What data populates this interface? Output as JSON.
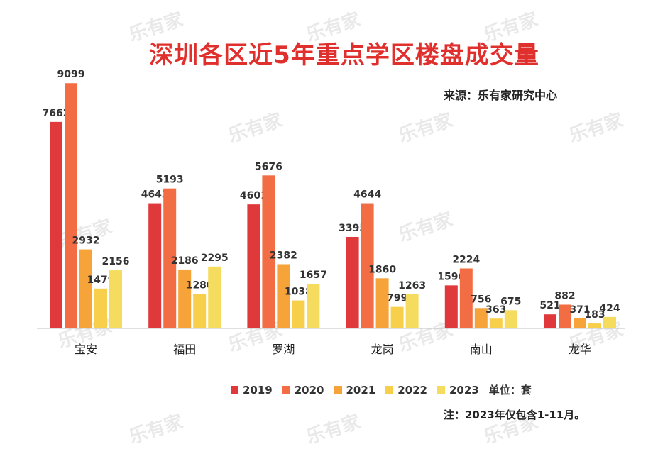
{
  "chart_data": {
    "type": "bar",
    "title": "深圳各区近5年重点学区楼盘成交量",
    "source": "来源：乐有家研究中心",
    "unit_label": "单位：套",
    "footnote": "注：2023年仅包含1-11月。",
    "categories": [
      "宝安",
      "福田",
      "罗湖",
      "龙岗",
      "南山",
      "龙华"
    ],
    "series": [
      {
        "name": "2019",
        "color": "#e0393b",
        "values": [
          7662,
          4643,
          4601,
          3395,
          1596,
          521
        ]
      },
      {
        "name": "2020",
        "color": "#f36d44",
        "values": [
          9099,
          5193,
          5676,
          4644,
          2224,
          882
        ]
      },
      {
        "name": "2021",
        "color": "#f6a33a",
        "values": [
          2932,
          2186,
          2382,
          1860,
          756,
          371
        ]
      },
      {
        "name": "2022",
        "color": "#f8cf4a",
        "values": [
          1479,
          1280,
          1038,
          799,
          363,
          183
        ]
      },
      {
        "name": "2023",
        "color": "#f6dc5e",
        "values": [
          2156,
          2295,
          1657,
          1263,
          675,
          424
        ]
      }
    ],
    "ylim": [
      0,
      10000
    ],
    "legend_position": "bottom",
    "grid": false
  },
  "watermark_text": "乐有家"
}
